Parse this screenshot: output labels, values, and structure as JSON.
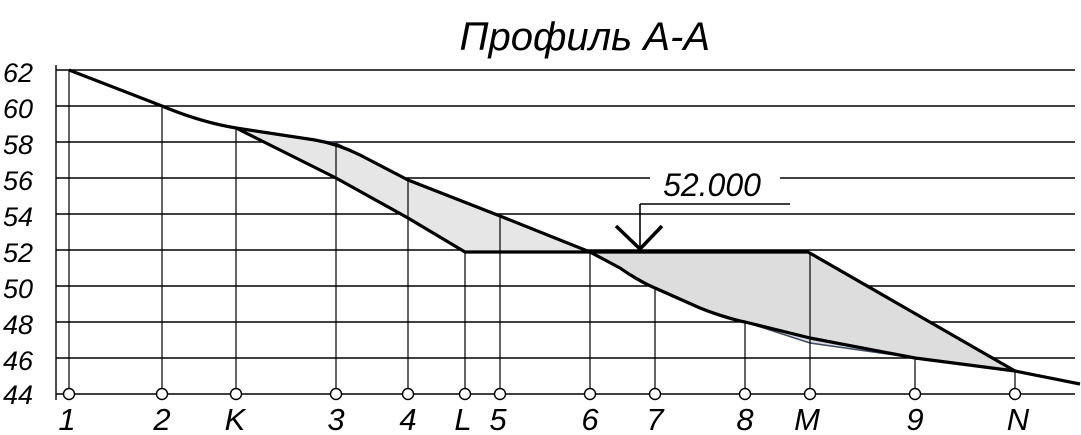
{
  "title": "Профиль А-А",
  "level_label": "52.000",
  "y_ticks": [
    "62",
    "60",
    "58",
    "56",
    "54",
    "52",
    "50",
    "48",
    "46",
    "44"
  ],
  "stations": [
    "1",
    "2",
    "K",
    "3",
    "4",
    "L",
    "5",
    "6",
    "7",
    "8",
    "M",
    "9",
    "N"
  ],
  "design_level": 52.0,
  "colors": {
    "line": "#000000",
    "fill": "#e6e6e6",
    "outline": "#3a4a66"
  }
}
